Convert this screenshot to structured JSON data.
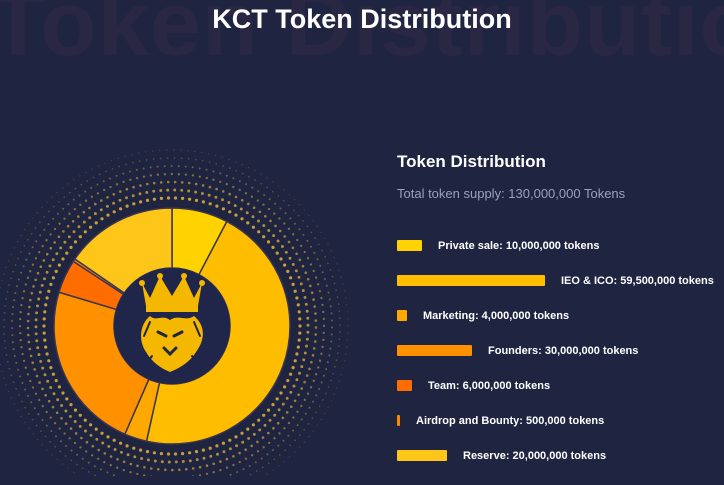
{
  "watermark": "Token Distributio",
  "title": "KCT Token Distribution",
  "panel": {
    "heading": "Token Distribution",
    "supply": "Total token supply: 130,000,000 Tokens"
  },
  "chart_data": {
    "type": "pie",
    "variant": "donut",
    "title": "Token Distribution",
    "total": 130000000,
    "slices": [
      {
        "label": "Private sale: 10,000,000 tokens",
        "name": "Private sale",
        "value": 10000000,
        "color": "#ffd200"
      },
      {
        "label": "IEO & ICO: 59,500,000 tokens",
        "name": "IEO & ICO",
        "value": 59500000,
        "color": "#ffbd00"
      },
      {
        "label": "Marketing: 4,000,000 tokens",
        "name": "Marketing",
        "value": 4000000,
        "color": "#ffa800"
      },
      {
        "label": "Founders: 30,000,000 tokens",
        "name": "Founders",
        "value": 30000000,
        "color": "#ff9100"
      },
      {
        "label": "Team: 6,000,000 tokens",
        "name": "Team",
        "value": 6000000,
        "color": "#ff6d00"
      },
      {
        "label": "Airdrop and Bounty: 500,000 tokens",
        "name": "Airdrop and Bounty",
        "value": 500000,
        "color": "#ff8400"
      },
      {
        "label": "Reserve: 20,000,000 tokens",
        "name": "Reserve",
        "value": 20000000,
        "color": "#ffc61a"
      }
    ]
  }
}
